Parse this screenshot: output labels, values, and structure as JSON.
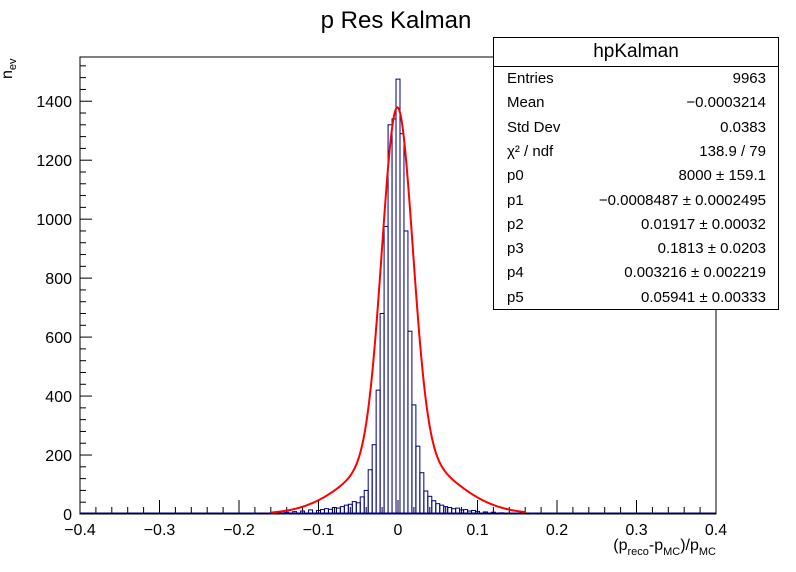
{
  "chart_data": {
    "type": "histogram",
    "title": "p Res Kalman",
    "ylabel_main": "n",
    "ylabel_sub": "ev",
    "xlabel": "(p",
    "xlabel_sub1": "reco",
    "xlabel_mid": "-p",
    "xlabel_sub2": "MC",
    "xlabel_end": ")/p",
    "xlabel_sub3": "MC",
    "xlim": [
      -0.4,
      0.4
    ],
    "ylim": [
      0,
      1550
    ],
    "x_ticks": [
      -0.4,
      -0.3,
      -0.2,
      -0.1,
      0,
      0.1,
      0.2,
      0.3,
      0.4
    ],
    "x_tick_labels": [
      "−0.4",
      "−0.3",
      "−0.2",
      "−0.1",
      "0",
      "0.1",
      "0.2",
      "0.3",
      "0.4"
    ],
    "y_ticks": [
      0,
      200,
      400,
      600,
      800,
      1000,
      1200,
      1400
    ],
    "y_tick_labels": [
      "0",
      "200",
      "400",
      "600",
      "800",
      "1000",
      "1200",
      "1400"
    ],
    "bin_width": 0.005,
    "bins": [
      {
        "x": -0.18,
        "y": 2
      },
      {
        "x": -0.16,
        "y": 3
      },
      {
        "x": -0.14,
        "y": 6
      },
      {
        "x": -0.13,
        "y": 8
      },
      {
        "x": -0.12,
        "y": 10
      },
      {
        "x": -0.11,
        "y": 14
      },
      {
        "x": -0.1,
        "y": 12
      },
      {
        "x": -0.095,
        "y": 15
      },
      {
        "x": -0.09,
        "y": 18
      },
      {
        "x": -0.085,
        "y": 16
      },
      {
        "x": -0.08,
        "y": 22
      },
      {
        "x": -0.075,
        "y": 20
      },
      {
        "x": -0.07,
        "y": 25
      },
      {
        "x": -0.065,
        "y": 30
      },
      {
        "x": -0.06,
        "y": 33
      },
      {
        "x": -0.055,
        "y": 42
      },
      {
        "x": -0.05,
        "y": 38
      },
      {
        "x": -0.045,
        "y": 58
      },
      {
        "x": -0.04,
        "y": 80
      },
      {
        "x": -0.035,
        "y": 150
      },
      {
        "x": -0.03,
        "y": 235
      },
      {
        "x": -0.025,
        "y": 420
      },
      {
        "x": -0.02,
        "y": 680
      },
      {
        "x": -0.015,
        "y": 975
      },
      {
        "x": -0.01,
        "y": 1320
      },
      {
        "x": -0.005,
        "y": 1340
      },
      {
        "x": 0.0,
        "y": 1475
      },
      {
        "x": 0.005,
        "y": 1290
      },
      {
        "x": 0.01,
        "y": 960
      },
      {
        "x": 0.015,
        "y": 620
      },
      {
        "x": 0.02,
        "y": 370
      },
      {
        "x": 0.025,
        "y": 230
      },
      {
        "x": 0.03,
        "y": 140
      },
      {
        "x": 0.035,
        "y": 78
      },
      {
        "x": 0.04,
        "y": 60
      },
      {
        "x": 0.045,
        "y": 45
      },
      {
        "x": 0.05,
        "y": 35
      },
      {
        "x": 0.055,
        "y": 30
      },
      {
        "x": 0.06,
        "y": 25
      },
      {
        "x": 0.065,
        "y": 22
      },
      {
        "x": 0.07,
        "y": 18
      },
      {
        "x": 0.075,
        "y": 20
      },
      {
        "x": 0.08,
        "y": 14
      },
      {
        "x": 0.085,
        "y": 15
      },
      {
        "x": 0.09,
        "y": 10
      },
      {
        "x": 0.095,
        "y": 12
      },
      {
        "x": 0.1,
        "y": 9
      },
      {
        "x": 0.11,
        "y": 7
      },
      {
        "x": 0.12,
        "y": 6
      },
      {
        "x": 0.13,
        "y": 4
      },
      {
        "x": 0.15,
        "y": 3
      },
      {
        "x": 0.17,
        "y": 2
      }
    ],
    "fit_model": "gaus(p0,p1,p2)+gaus(p0*p3,p4,p5)",
    "hist_color": "#000080",
    "fit_color": "#ff0000",
    "legend_position": "top-right",
    "grid": false
  },
  "stats": {
    "title": "hpKalman",
    "rows": [
      {
        "key": "Entries",
        "value": "9963"
      },
      {
        "key": "Mean",
        "value": "−0.0003214"
      },
      {
        "key": "Std Dev",
        "value": "0.0383"
      },
      {
        "key": "χ² / ndf",
        "value": "138.9 / 79"
      },
      {
        "key": "p0",
        "value": "8000 ± 159.1"
      },
      {
        "key": "p1",
        "value": "−0.0008487 ± 0.0002495"
      },
      {
        "key": "p2",
        "value": "0.01917 ± 0.00032"
      },
      {
        "key": "p3",
        "value": "0.1813 ± 0.0203"
      },
      {
        "key": "p4",
        "value": "0.003216 ± 0.002219"
      },
      {
        "key": "p5",
        "value": "0.05941 ± 0.00333"
      }
    ]
  }
}
